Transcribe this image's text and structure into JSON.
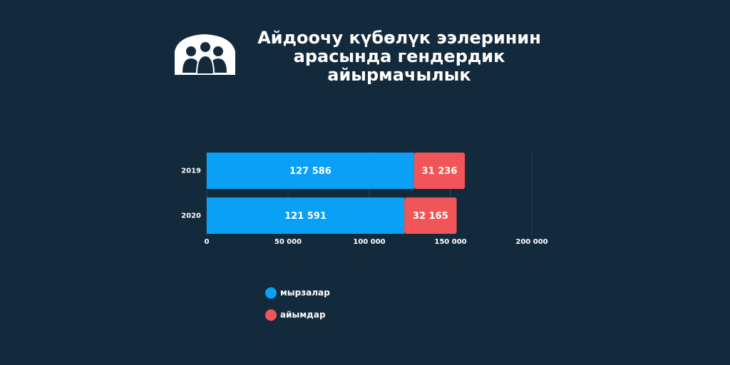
{
  "chart_data": {
    "type": "bar",
    "orientation": "horizontal",
    "stacked": true,
    "title": "Айдоочу күбөлүк ээлеринин арасында гендердик айырмачылык",
    "categories": [
      "2019",
      "2020"
    ],
    "series": [
      {
        "name": "мырзалар",
        "color": "#0aa0f5",
        "values": [
          127586,
          121591
        ],
        "value_labels": [
          "127 586",
          "121 591"
        ]
      },
      {
        "name": "айымдар",
        "color": "#f25557",
        "values": [
          31236,
          32165
        ],
        "value_labels": [
          "31 236",
          "32 165"
        ]
      }
    ],
    "xlim": [
      0,
      200000
    ],
    "xticks": [
      0,
      {
        "value": 50000,
        "label": "50 000"
      },
      {
        "value": 100000,
        "label": "100 000"
      },
      {
        "value": 150000,
        "label": "150 000"
      },
      {
        "value": 200000,
        "label": "200 000"
      }
    ],
    "grid": true,
    "legend": "bottom"
  }
}
